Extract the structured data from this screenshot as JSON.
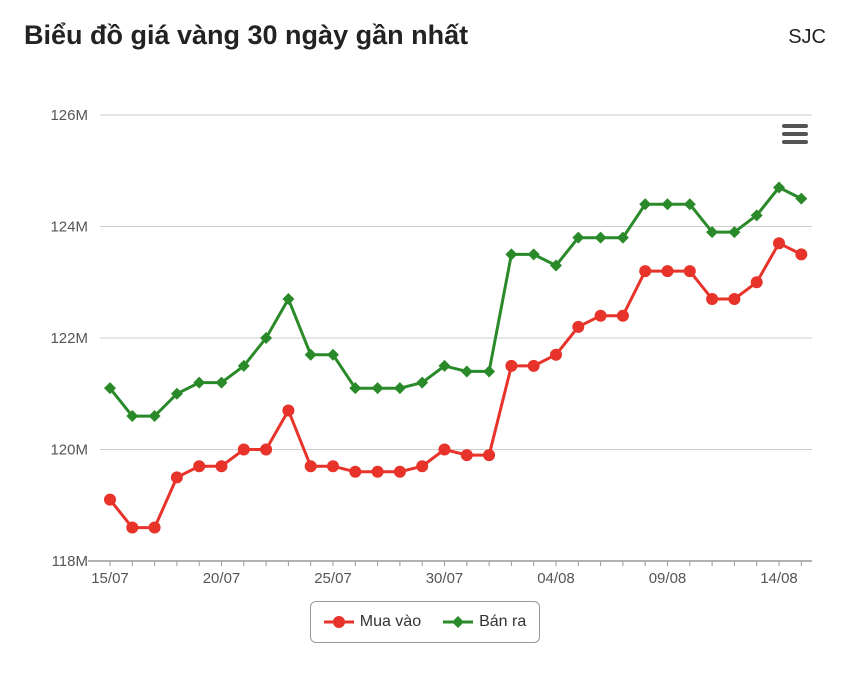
{
  "header": {
    "title": "Biểu đồ giá vàng 30 ngày gần nhất",
    "brand": "SJC"
  },
  "chart_data": {
    "type": "line",
    "title": "Biểu đồ giá vàng 30 ngày gần nhất",
    "ylabel": "",
    "xlabel": "",
    "ylim": [
      118,
      126
    ],
    "y_ticks": [
      118,
      120,
      122,
      124,
      126
    ],
    "y_tick_labels": [
      "118M",
      "120M",
      "122M",
      "124M",
      "126M"
    ],
    "x": [
      "15/07",
      "16/07",
      "17/07",
      "18/07",
      "19/07",
      "20/07",
      "21/07",
      "22/07",
      "23/07",
      "24/07",
      "25/07",
      "26/07",
      "27/07",
      "28/07",
      "29/07",
      "30/07",
      "31/07",
      "01/08",
      "02/08",
      "03/08",
      "04/08",
      "05/08",
      "06/08",
      "07/08",
      "08/08",
      "09/08",
      "10/08",
      "11/08",
      "12/08",
      "13/08",
      "14/08",
      "15/08"
    ],
    "x_tick_labels": [
      "15/07",
      "20/07",
      "25/07",
      "30/07",
      "04/08",
      "09/08",
      "14/08"
    ],
    "x_tick_indices": [
      0,
      5,
      10,
      15,
      20,
      25,
      30
    ],
    "grid": true,
    "legend": "bottom-center",
    "series": [
      {
        "name": "Mua vào",
        "color": "#e8332a",
        "marker": "circle",
        "values": [
          119.1,
          118.6,
          118.6,
          119.5,
          119.7,
          119.7,
          120.0,
          120.0,
          120.7,
          119.7,
          119.7,
          119.6,
          119.6,
          119.6,
          119.7,
          120.0,
          119.9,
          119.9,
          121.5,
          121.5,
          121.7,
          122.2,
          122.4,
          122.4,
          123.2,
          123.2,
          123.2,
          122.7,
          122.7,
          123.0,
          123.7,
          123.5
        ]
      },
      {
        "name": "Bán ra",
        "color": "#2a8a2a",
        "marker": "diamond",
        "values": [
          121.1,
          120.6,
          120.6,
          121.0,
          121.2,
          121.2,
          121.5,
          122.0,
          122.7,
          121.7,
          121.7,
          121.1,
          121.1,
          121.1,
          121.2,
          121.5,
          121.4,
          121.4,
          123.5,
          123.5,
          123.3,
          123.8,
          123.8,
          123.8,
          124.4,
          124.4,
          124.4,
          123.9,
          123.9,
          124.2,
          124.7,
          124.5
        ]
      }
    ]
  },
  "legend": {
    "items": [
      "Mua vào",
      "Bán ra"
    ]
  },
  "icons": {
    "menu": "hamburger-menu-icon"
  }
}
